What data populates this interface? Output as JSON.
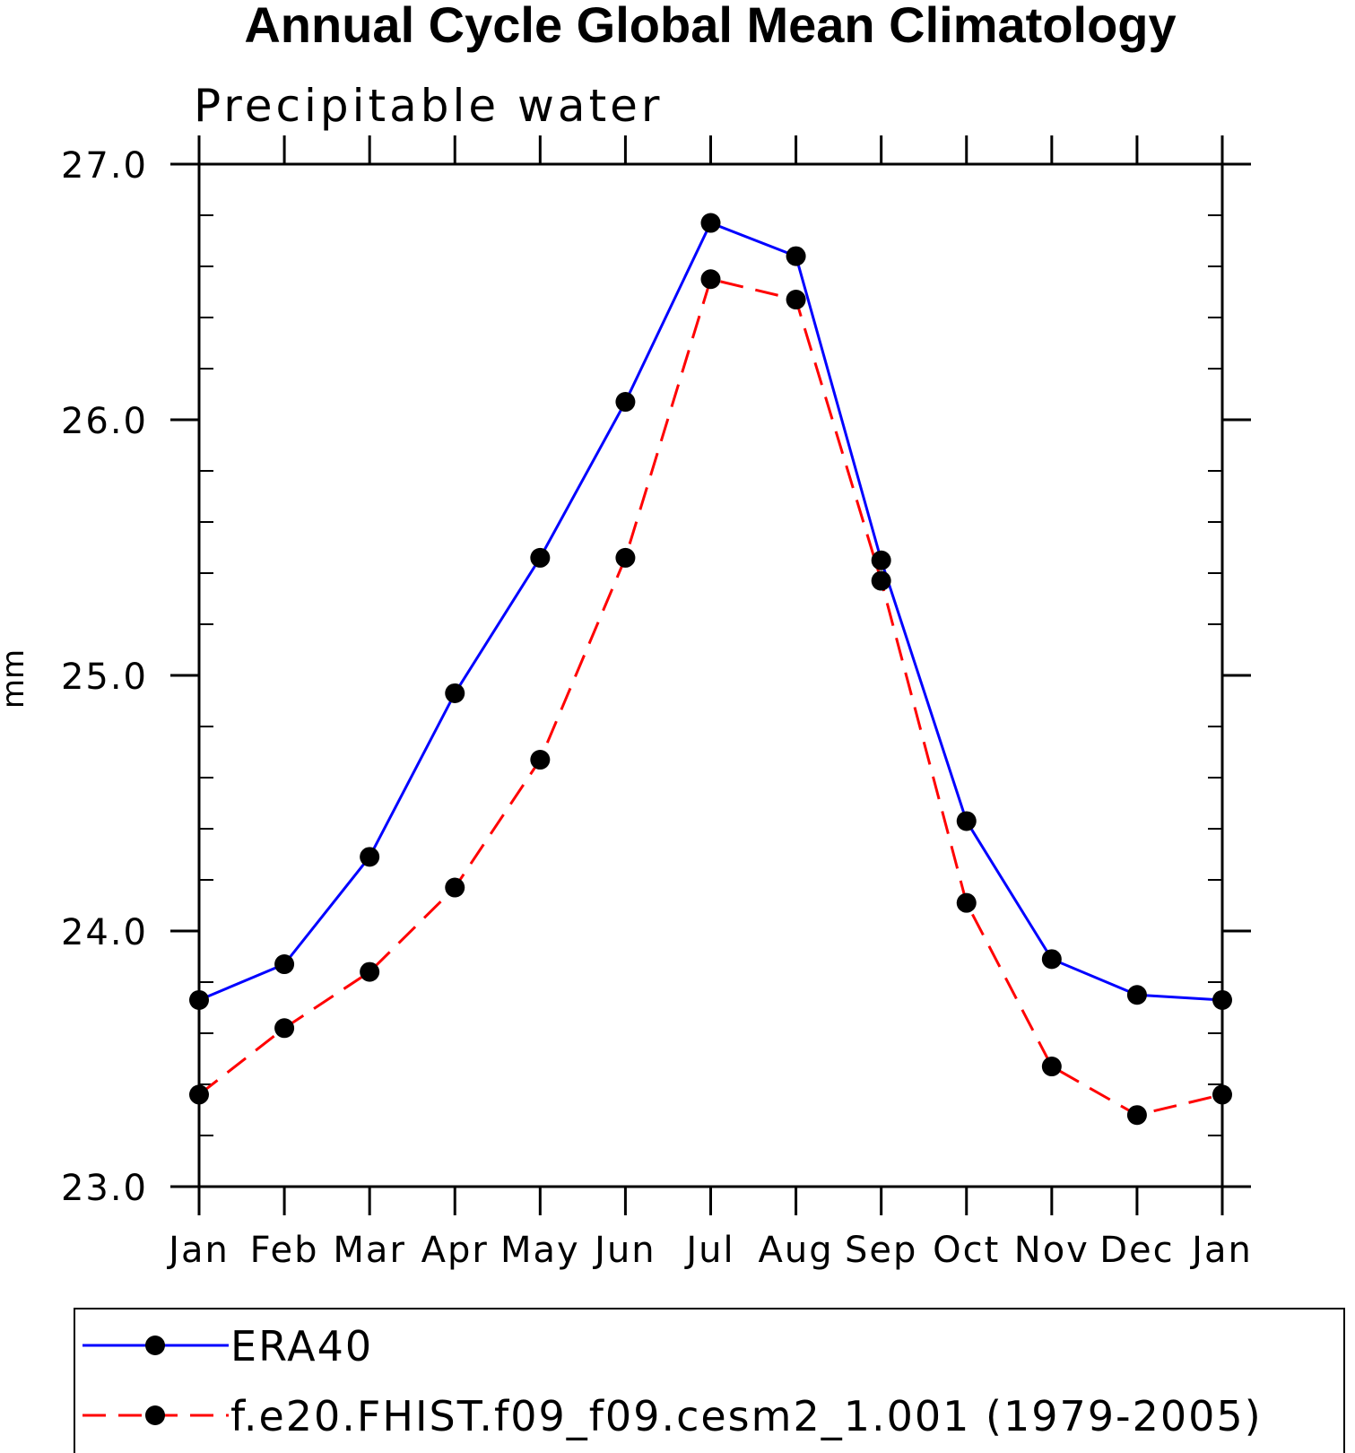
{
  "chart_data": {
    "type": "line",
    "title": "Annual Cycle Global Mean Climatology",
    "subtitle": "Precipitable water",
    "xlabel": "",
    "ylabel": "mm",
    "categories": [
      "Jan",
      "Feb",
      "Mar",
      "Apr",
      "May",
      "Jun",
      "Jul",
      "Aug",
      "Sep",
      "Oct",
      "Nov",
      "Dec",
      "Jan"
    ],
    "ylim": [
      23.0,
      27.0
    ],
    "yticks": [
      "23.0",
      "24.0",
      "25.0",
      "26.0",
      "27.0"
    ],
    "ytick_values": [
      23.0,
      24.0,
      25.0,
      26.0,
      27.0
    ],
    "minor_step": 0.2,
    "grid": false,
    "legend_position": "bottom",
    "series": [
      {
        "name": "ERA40",
        "color": "#0000ff",
        "dashed": false,
        "values": [
          23.73,
          23.87,
          24.29,
          24.93,
          25.46,
          26.07,
          26.77,
          26.64,
          25.45,
          24.43,
          23.89,
          23.75,
          23.73
        ]
      },
      {
        "name": "f.e20.FHIST.f09_f09.cesm2_1.001 (1979-2005)",
        "color": "#ff0000",
        "dashed": true,
        "values": [
          23.36,
          23.62,
          23.84,
          24.17,
          24.67,
          25.46,
          26.55,
          26.47,
          25.37,
          24.11,
          23.47,
          23.28,
          23.36
        ]
      }
    ]
  }
}
